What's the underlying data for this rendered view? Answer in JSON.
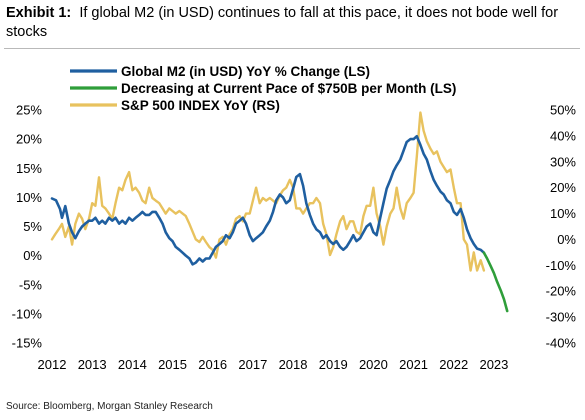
{
  "title": {
    "label": "Exhibit 1:",
    "text": "If global M2 (in USD) continues to fall at this pace, it does not bode well for stocks"
  },
  "source": "Source: Bloomberg, Morgan Stanley Research",
  "chart_data": {
    "type": "line",
    "xlim": [
      2012.0,
      2023.4
    ],
    "x_ticks": [
      "2012",
      "2013",
      "2014",
      "2015",
      "2016",
      "2017",
      "2018",
      "2019",
      "2020",
      "2021",
      "2022",
      "2023"
    ],
    "left_axis": {
      "ylim": [
        -15,
        25
      ],
      "ticks": [
        "25%",
        "20%",
        "15%",
        "10%",
        "5%",
        "0%",
        "-5%",
        "-10%",
        "-15%"
      ]
    },
    "right_axis": {
      "ylim": [
        -40,
        50
      ],
      "ticks": [
        "50%",
        "40%",
        "30%",
        "20%",
        "10%",
        "0%",
        "-10%",
        "-20%",
        "-30%",
        "-40%"
      ]
    },
    "legend_position": "top",
    "grid": false,
    "series": [
      {
        "name": "Global M2 (in USD) YoY % Change (LS)",
        "axis": "left",
        "color": "#1f5fa0",
        "points": [
          [
            2012.0,
            9.8
          ],
          [
            2012.1,
            9.5
          ],
          [
            2012.2,
            8.0
          ],
          [
            2012.25,
            6.5
          ],
          [
            2012.33,
            8.5
          ],
          [
            2012.42,
            5.5
          ],
          [
            2012.5,
            4.0
          ],
          [
            2012.58,
            3.0
          ],
          [
            2012.67,
            4.2
          ],
          [
            2012.75,
            5.0
          ],
          [
            2012.83,
            5.5
          ],
          [
            2012.92,
            6.0
          ],
          [
            2013.0,
            6.0
          ],
          [
            2013.08,
            6.5
          ],
          [
            2013.17,
            5.5
          ],
          [
            2013.25,
            6.0
          ],
          [
            2013.33,
            5.5
          ],
          [
            2013.42,
            6.5
          ],
          [
            2013.5,
            6.0
          ],
          [
            2013.58,
            6.5
          ],
          [
            2013.67,
            5.5
          ],
          [
            2013.75,
            6.0
          ],
          [
            2013.83,
            5.5
          ],
          [
            2013.92,
            6.5
          ],
          [
            2014.0,
            6.0
          ],
          [
            2014.08,
            6.5
          ],
          [
            2014.17,
            7.0
          ],
          [
            2014.25,
            7.5
          ],
          [
            2014.33,
            7.0
          ],
          [
            2014.42,
            7.0
          ],
          [
            2014.5,
            7.5
          ],
          [
            2014.58,
            7.5
          ],
          [
            2014.67,
            6.5
          ],
          [
            2014.75,
            5.5
          ],
          [
            2014.83,
            4.0
          ],
          [
            2014.92,
            3.0
          ],
          [
            2015.0,
            2.5
          ],
          [
            2015.08,
            1.5
          ],
          [
            2015.17,
            1.0
          ],
          [
            2015.25,
            0.5
          ],
          [
            2015.33,
            0.0
          ],
          [
            2015.42,
            -0.5
          ],
          [
            2015.5,
            -1.5
          ],
          [
            2015.58,
            -1.2
          ],
          [
            2015.67,
            -0.5
          ],
          [
            2015.75,
            -1.0
          ],
          [
            2015.83,
            -0.5
          ],
          [
            2015.92,
            -0.5
          ],
          [
            2016.0,
            0.5
          ],
          [
            2016.08,
            1.5
          ],
          [
            2016.17,
            2.0
          ],
          [
            2016.25,
            2.5
          ],
          [
            2016.33,
            3.5
          ],
          [
            2016.42,
            3.0
          ],
          [
            2016.5,
            4.0
          ],
          [
            2016.58,
            5.5
          ],
          [
            2016.67,
            6.0
          ],
          [
            2016.75,
            6.5
          ],
          [
            2016.83,
            5.5
          ],
          [
            2016.92,
            3.5
          ],
          [
            2017.0,
            2.5
          ],
          [
            2017.08,
            3.0
          ],
          [
            2017.17,
            3.5
          ],
          [
            2017.25,
            4.0
          ],
          [
            2017.33,
            5.0
          ],
          [
            2017.42,
            6.0
          ],
          [
            2017.5,
            7.5
          ],
          [
            2017.58,
            9.5
          ],
          [
            2017.67,
            10.5
          ],
          [
            2017.75,
            10.0
          ],
          [
            2017.83,
            9.0
          ],
          [
            2017.92,
            9.5
          ],
          [
            2018.0,
            11.5
          ],
          [
            2018.08,
            13.5
          ],
          [
            2018.17,
            14.0
          ],
          [
            2018.25,
            12.0
          ],
          [
            2018.33,
            9.0
          ],
          [
            2018.42,
            7.0
          ],
          [
            2018.5,
            5.5
          ],
          [
            2018.58,
            4.5
          ],
          [
            2018.67,
            4.0
          ],
          [
            2018.75,
            3.0
          ],
          [
            2018.83,
            3.5
          ],
          [
            2018.92,
            2.5
          ],
          [
            2019.0,
            2.0
          ],
          [
            2019.08,
            2.5
          ],
          [
            2019.17,
            1.5
          ],
          [
            2019.25,
            1.0
          ],
          [
            2019.33,
            1.5
          ],
          [
            2019.42,
            2.5
          ],
          [
            2019.5,
            3.5
          ],
          [
            2019.58,
            2.5
          ],
          [
            2019.67,
            3.0
          ],
          [
            2019.75,
            4.0
          ],
          [
            2019.83,
            5.0
          ],
          [
            2019.92,
            5.5
          ],
          [
            2020.0,
            4.0
          ],
          [
            2020.08,
            3.5
          ],
          [
            2020.17,
            6.5
          ],
          [
            2020.25,
            9.0
          ],
          [
            2020.33,
            11.5
          ],
          [
            2020.42,
            13.0
          ],
          [
            2020.5,
            14.5
          ],
          [
            2020.58,
            15.5
          ],
          [
            2020.67,
            16.5
          ],
          [
            2020.75,
            18.0
          ],
          [
            2020.83,
            19.5
          ],
          [
            2020.92,
            20.0
          ],
          [
            2021.0,
            20.0
          ],
          [
            2021.08,
            20.5
          ],
          [
            2021.17,
            19.0
          ],
          [
            2021.25,
            17.5
          ],
          [
            2021.33,
            16.5
          ],
          [
            2021.42,
            14.5
          ],
          [
            2021.5,
            13.0
          ],
          [
            2021.58,
            12.0
          ],
          [
            2021.67,
            11.0
          ],
          [
            2021.75,
            10.5
          ],
          [
            2021.83,
            9.5
          ],
          [
            2021.92,
            9.0
          ],
          [
            2022.0,
            7.5
          ],
          [
            2022.08,
            7.0
          ],
          [
            2022.17,
            8.0
          ],
          [
            2022.25,
            6.5
          ],
          [
            2022.33,
            4.5
          ],
          [
            2022.42,
            3.0
          ],
          [
            2022.5,
            2.0
          ],
          [
            2022.58,
            1.2
          ],
          [
            2022.67,
            1.0
          ],
          [
            2022.75,
            0.5
          ]
        ]
      },
      {
        "name": "Decreasing at Current Pace of $750B per Month (LS)",
        "axis": "left",
        "color": "#2f9e3a",
        "points": [
          [
            2022.75,
            0.5
          ],
          [
            2022.83,
            -0.5
          ],
          [
            2022.92,
            -1.8
          ],
          [
            2023.0,
            -3.0
          ],
          [
            2023.08,
            -4.5
          ],
          [
            2023.17,
            -6.0
          ],
          [
            2023.25,
            -7.5
          ],
          [
            2023.33,
            -9.5
          ]
        ]
      },
      {
        "name": "S&P 500 INDEX YoY (RS)",
        "axis": "right",
        "color": "#e8c25e",
        "points": [
          [
            2012.0,
            0
          ],
          [
            2012.08,
            2
          ],
          [
            2012.17,
            4
          ],
          [
            2012.25,
            6
          ],
          [
            2012.33,
            1
          ],
          [
            2012.42,
            5
          ],
          [
            2012.5,
            -2
          ],
          [
            2012.58,
            6
          ],
          [
            2012.67,
            10
          ],
          [
            2012.75,
            8
          ],
          [
            2012.83,
            4
          ],
          [
            2012.92,
            8
          ],
          [
            2013.0,
            14
          ],
          [
            2013.08,
            13
          ],
          [
            2013.17,
            24
          ],
          [
            2013.25,
            13
          ],
          [
            2013.33,
            12
          ],
          [
            2013.42,
            10
          ],
          [
            2013.5,
            8
          ],
          [
            2013.58,
            14
          ],
          [
            2013.67,
            20
          ],
          [
            2013.75,
            19
          ],
          [
            2013.83,
            23
          ],
          [
            2013.92,
            26
          ],
          [
            2014.0,
            19
          ],
          [
            2014.08,
            20
          ],
          [
            2014.17,
            18
          ],
          [
            2014.25,
            15
          ],
          [
            2014.33,
            14
          ],
          [
            2014.42,
            20
          ],
          [
            2014.5,
            16
          ],
          [
            2014.58,
            15
          ],
          [
            2014.67,
            14
          ],
          [
            2014.75,
            12
          ],
          [
            2014.83,
            10
          ],
          [
            2014.92,
            12
          ],
          [
            2015.0,
            11
          ],
          [
            2015.08,
            10
          ],
          [
            2015.17,
            11
          ],
          [
            2015.25,
            10
          ],
          [
            2015.33,
            9
          ],
          [
            2015.42,
            6
          ],
          [
            2015.5,
            3
          ],
          [
            2015.58,
            0
          ],
          [
            2015.67,
            -1
          ],
          [
            2015.75,
            1
          ],
          [
            2015.83,
            -1
          ],
          [
            2015.92,
            -3
          ],
          [
            2016.0,
            -4
          ],
          [
            2016.08,
            -7
          ],
          [
            2016.17,
            0
          ],
          [
            2016.25,
            1
          ],
          [
            2016.33,
            -2
          ],
          [
            2016.42,
            2
          ],
          [
            2016.5,
            4
          ],
          [
            2016.58,
            8
          ],
          [
            2016.67,
            9
          ],
          [
            2016.75,
            7
          ],
          [
            2016.83,
            10
          ],
          [
            2016.92,
            10
          ],
          [
            2017.0,
            15
          ],
          [
            2017.08,
            20
          ],
          [
            2017.17,
            14
          ],
          [
            2017.25,
            16
          ],
          [
            2017.33,
            15
          ],
          [
            2017.42,
            16
          ],
          [
            2017.5,
            15
          ],
          [
            2017.58,
            14
          ],
          [
            2017.67,
            17
          ],
          [
            2017.75,
            19
          ],
          [
            2017.83,
            20
          ],
          [
            2017.92,
            23
          ],
          [
            2018.0,
            20
          ],
          [
            2018.08,
            12
          ],
          [
            2018.17,
            12
          ],
          [
            2018.25,
            10
          ],
          [
            2018.33,
            12
          ],
          [
            2018.42,
            14
          ],
          [
            2018.5,
            14
          ],
          [
            2018.58,
            16
          ],
          [
            2018.67,
            14
          ],
          [
            2018.75,
            6
          ],
          [
            2018.83,
            2
          ],
          [
            2018.92,
            -6
          ],
          [
            2019.0,
            -3
          ],
          [
            2019.08,
            2
          ],
          [
            2019.17,
            7
          ],
          [
            2019.25,
            9
          ],
          [
            2019.33,
            4
          ],
          [
            2019.42,
            7
          ],
          [
            2019.5,
            7
          ],
          [
            2019.58,
            3
          ],
          [
            2019.67,
            2
          ],
          [
            2019.75,
            9
          ],
          [
            2019.83,
            13
          ],
          [
            2019.92,
            13
          ],
          [
            2020.0,
            20
          ],
          [
            2020.08,
            10
          ],
          [
            2020.17,
            5
          ],
          [
            2020.25,
            -2
          ],
          [
            2020.33,
            5
          ],
          [
            2020.42,
            10
          ],
          [
            2020.5,
            12
          ],
          [
            2020.58,
            20
          ],
          [
            2020.67,
            12
          ],
          [
            2020.75,
            8
          ],
          [
            2020.83,
            14
          ],
          [
            2020.92,
            16
          ],
          [
            2021.0,
            18
          ],
          [
            2021.08,
            32
          ],
          [
            2021.17,
            49
          ],
          [
            2021.25,
            42
          ],
          [
            2021.33,
            38
          ],
          [
            2021.42,
            35
          ],
          [
            2021.5,
            33
          ],
          [
            2021.58,
            34
          ],
          [
            2021.67,
            30
          ],
          [
            2021.75,
            28
          ],
          [
            2021.83,
            26
          ],
          [
            2021.92,
            27
          ],
          [
            2022.0,
            20
          ],
          [
            2022.08,
            14
          ],
          [
            2022.17,
            14
          ],
          [
            2022.25,
            0
          ],
          [
            2022.33,
            -2
          ],
          [
            2022.42,
            -12
          ],
          [
            2022.5,
            -5
          ],
          [
            2022.58,
            -12
          ],
          [
            2022.67,
            -8
          ],
          [
            2022.75,
            -12
          ]
        ]
      }
    ]
  }
}
